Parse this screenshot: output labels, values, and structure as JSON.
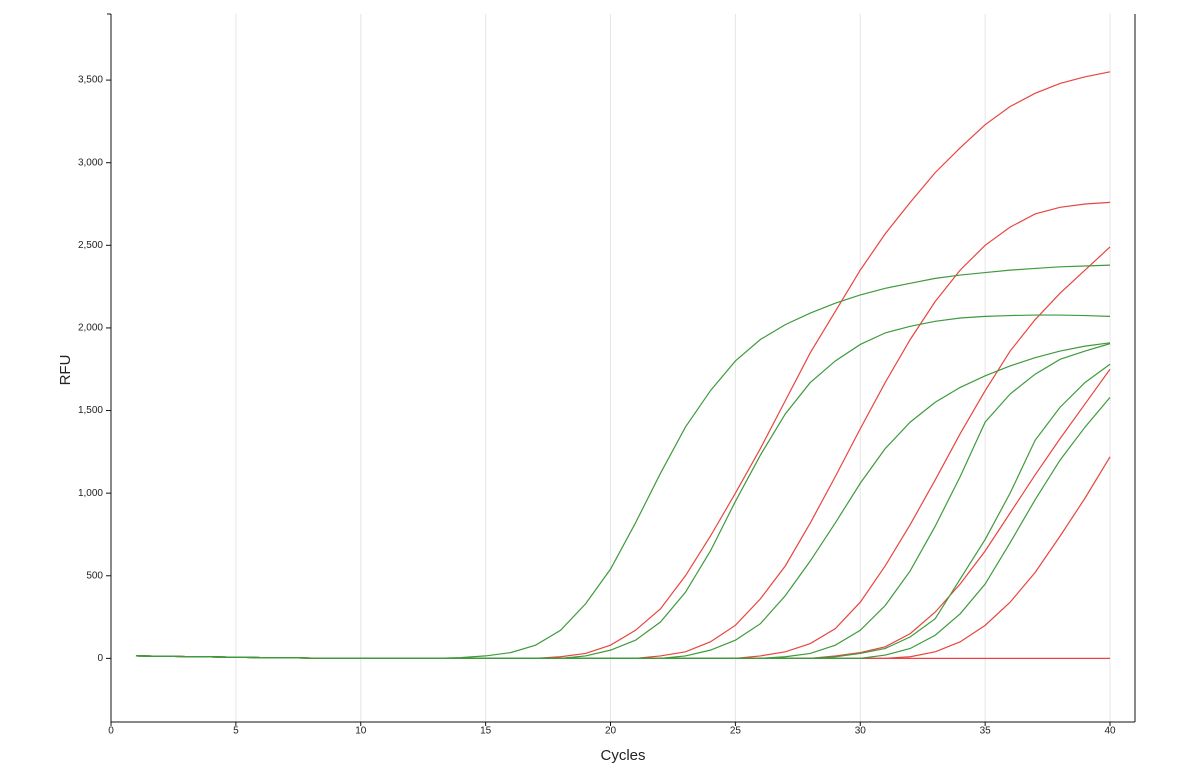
{
  "chart_data": {
    "type": "line",
    "x_label": "Cycles",
    "y_label": "RFU",
    "x": [
      1,
      2,
      3,
      4,
      5,
      6,
      7,
      8,
      9,
      10,
      11,
      12,
      13,
      14,
      15,
      16,
      17,
      18,
      19,
      20,
      21,
      22,
      23,
      24,
      25,
      26,
      27,
      28,
      29,
      30,
      31,
      32,
      33,
      34,
      35,
      36,
      37,
      38,
      39,
      40
    ],
    "xlim": [
      0,
      41
    ],
    "xticks": [
      0,
      5,
      10,
      15,
      20,
      25,
      30,
      35,
      40
    ],
    "ylim": [
      -385,
      3900
    ],
    "yticks": [
      0,
      500,
      {
        "value": 1000,
        "label": "1,000"
      },
      {
        "value": 1500,
        "label": "1,500"
      },
      {
        "value": 2000,
        "label": "2,000"
      },
      {
        "value": 2500,
        "label": "2,500"
      },
      {
        "value": 3000,
        "label": "3,000"
      },
      {
        "value": 3500,
        "label": "3,500"
      }
    ],
    "x_grid": true,
    "series": [
      {
        "color": "#e8453f",
        "values": [
          15,
          13,
          11,
          9,
          7,
          5,
          4,
          2,
          1,
          0,
          0,
          0,
          0,
          0,
          0,
          0,
          0,
          0,
          0,
          0,
          0,
          0,
          0,
          0,
          0,
          0,
          0,
          0,
          0,
          0,
          0,
          0,
          0,
          0,
          0,
          0,
          0,
          0,
          0,
          0
        ]
      },
      {
        "color": "#e8453f",
        "values": [
          15,
          13,
          11,
          9,
          7,
          5,
          4,
          2,
          1,
          0,
          0,
          0,
          0,
          0,
          0,
          0,
          0,
          10,
          30,
          80,
          170,
          300,
          500,
          740,
          1000,
          1270,
          1560,
          1850,
          2100,
          2350,
          2570,
          2760,
          2940,
          3090,
          3230,
          3340,
          3420,
          3480,
          3520,
          3550
        ]
      },
      {
        "color": "#e8453f",
        "values": [
          15,
          13,
          11,
          9,
          7,
          5,
          4,
          2,
          1,
          0,
          0,
          0,
          0,
          0,
          0,
          0,
          0,
          0,
          0,
          0,
          0,
          15,
          40,
          100,
          200,
          360,
          560,
          820,
          1100,
          1390,
          1670,
          1930,
          2160,
          2350,
          2500,
          2610,
          2690,
          2730,
          2750,
          2760
        ]
      },
      {
        "color": "#e8453f",
        "values": [
          15,
          13,
          11,
          9,
          7,
          5,
          4,
          2,
          1,
          0,
          0,
          0,
          0,
          0,
          0,
          0,
          0,
          0,
          0,
          0,
          0,
          0,
          0,
          0,
          0,
          15,
          40,
          90,
          180,
          340,
          560,
          810,
          1080,
          1360,
          1620,
          1860,
          2050,
          2210,
          2350,
          2490
        ]
      },
      {
        "color": "#e8453f",
        "values": [
          15,
          13,
          11,
          9,
          7,
          5,
          4,
          2,
          1,
          0,
          0,
          0,
          0,
          0,
          0,
          0,
          0,
          0,
          0,
          0,
          0,
          0,
          0,
          0,
          0,
          0,
          0,
          0,
          15,
          35,
          70,
          150,
          280,
          450,
          650,
          880,
          1110,
          1330,
          1540,
          1750
        ]
      },
      {
        "color": "#e8453f",
        "values": [
          15,
          13,
          11,
          9,
          7,
          5,
          4,
          2,
          1,
          0,
          0,
          0,
          0,
          0,
          0,
          0,
          0,
          0,
          0,
          0,
          0,
          0,
          0,
          0,
          0,
          0,
          0,
          0,
          0,
          0,
          0,
          10,
          40,
          100,
          200,
          340,
          520,
          740,
          970,
          1220
        ]
      },
      {
        "color": "#3f9a3c",
        "values": [
          15,
          13,
          11,
          9,
          7,
          5,
          4,
          2,
          1,
          0,
          0,
          0,
          0,
          5,
          15,
          35,
          80,
          170,
          330,
          540,
          820,
          1120,
          1400,
          1620,
          1800,
          1930,
          2020,
          2090,
          2150,
          2200,
          2240,
          2270,
          2300,
          2320,
          2335,
          2350,
          2360,
          2370,
          2375,
          2380
        ]
      },
      {
        "color": "#3f9a3c",
        "values": [
          15,
          13,
          11,
          9,
          7,
          5,
          4,
          2,
          1,
          0,
          0,
          0,
          0,
          0,
          0,
          0,
          0,
          0,
          15,
          50,
          110,
          220,
          400,
          650,
          950,
          1230,
          1480,
          1670,
          1800,
          1900,
          1970,
          2010,
          2040,
          2060,
          2070,
          2075,
          2078,
          2078,
          2075,
          2070
        ]
      },
      {
        "color": "#3f9a3c",
        "values": [
          15,
          13,
          11,
          9,
          7,
          5,
          4,
          2,
          1,
          0,
          0,
          0,
          0,
          0,
          0,
          0,
          0,
          0,
          0,
          0,
          0,
          0,
          15,
          50,
          110,
          210,
          380,
          590,
          820,
          1060,
          1270,
          1430,
          1550,
          1640,
          1710,
          1770,
          1820,
          1860,
          1890,
          1910
        ]
      },
      {
        "color": "#3f9a3c",
        "values": [
          15,
          13,
          11,
          9,
          7,
          5,
          4,
          2,
          1,
          0,
          0,
          0,
          0,
          0,
          0,
          0,
          0,
          0,
          0,
          0,
          0,
          0,
          0,
          0,
          0,
          0,
          10,
          30,
          80,
          170,
          320,
          530,
          800,
          1100,
          1430,
          1600,
          1720,
          1810,
          1860,
          1905
        ]
      },
      {
        "color": "#3f9a3c",
        "values": [
          15,
          13,
          11,
          9,
          7,
          5,
          4,
          2,
          1,
          0,
          0,
          0,
          0,
          0,
          0,
          0,
          0,
          0,
          0,
          0,
          0,
          0,
          0,
          0,
          0,
          0,
          0,
          0,
          10,
          30,
          60,
          130,
          240,
          480,
          720,
          1000,
          1320,
          1520,
          1670,
          1780
        ]
      },
      {
        "color": "#3f9a3c",
        "values": [
          15,
          13,
          11,
          9,
          7,
          5,
          4,
          2,
          1,
          0,
          0,
          0,
          0,
          0,
          0,
          0,
          0,
          0,
          0,
          0,
          0,
          0,
          0,
          0,
          0,
          0,
          0,
          0,
          0,
          0,
          20,
          60,
          140,
          270,
          450,
          700,
          960,
          1200,
          1400,
          1580
        ]
      }
    ]
  }
}
